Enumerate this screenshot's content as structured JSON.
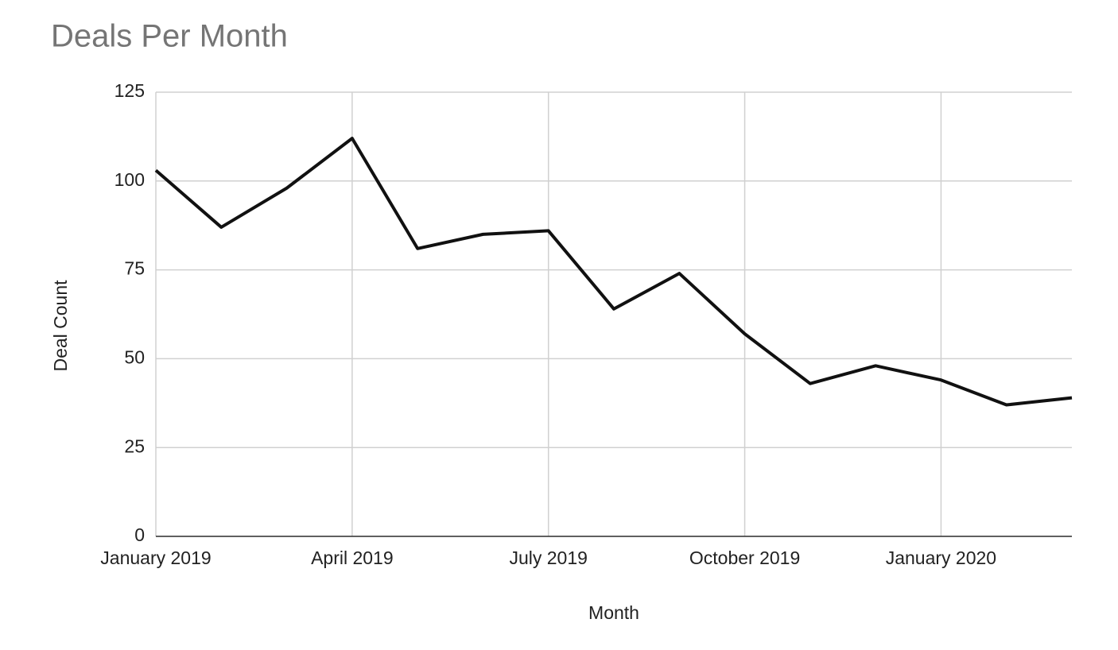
{
  "chart_data": {
    "type": "line",
    "title": "Deals Per Month",
    "x_label": "Month",
    "y_label": "Deal Count",
    "categories": [
      "January 2019",
      null,
      null,
      "April 2019",
      null,
      null,
      "July 2019",
      null,
      null,
      "October 2019",
      null,
      null,
      "January 2020",
      null,
      null
    ],
    "series": [
      {
        "name": "Deal Count",
        "color": "#111111",
        "values": [
          103,
          87,
          98,
          112,
          81,
          85,
          86,
          64,
          74,
          57,
          43,
          48,
          44,
          37,
          39
        ]
      }
    ],
    "ylim": [
      0,
      125
    ],
    "yticks": [
      0,
      25,
      50,
      75,
      100,
      125
    ],
    "grid": true
  }
}
